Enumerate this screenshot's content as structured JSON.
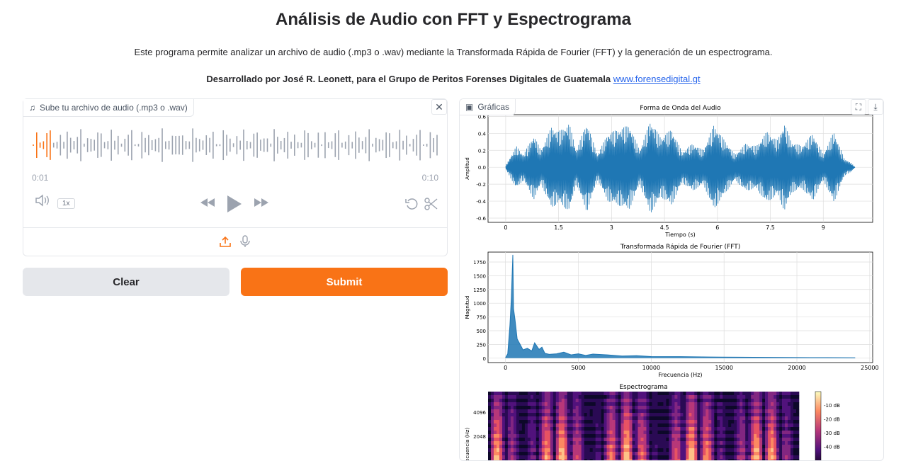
{
  "header": {
    "title": "Análisis de Audio con FFT y Espectrograma",
    "description": "Este programa permite analizar un archivo de audio (.mp3 o .wav) mediante la Transformada Rápida de Fourier (FFT) y la generación de un espectrograma.",
    "credit_text": "Desarrollado por José R. Leonett, para el Grupo de Peritos Forenses Digitales de Guatemala ",
    "credit_link": "www.forensedigital.gt"
  },
  "audio": {
    "label": "Sube tu archivo de audio (.mp3 o .wav)",
    "time_current": "0:01",
    "time_total": "0:10",
    "speed": "1x",
    "progress": 0.05
  },
  "buttons": {
    "clear": "Clear",
    "submit": "Submit"
  },
  "plots": {
    "label": "Gráficas"
  },
  "chart_data": [
    {
      "type": "line",
      "title": "Forma de Onda del Audio",
      "xlabel": "Tiempo (s)",
      "ylabel": "Amplitud",
      "xticks": [
        "0",
        "1.5",
        "3",
        "4.5",
        "6",
        "7.5",
        "9"
      ],
      "yticks": [
        "0.6",
        "0.4",
        "0.2",
        "0.0",
        "-0.2",
        "-0.4",
        "-0.6"
      ],
      "xlim": [
        -0.5,
        10.4
      ],
      "ylim": [
        -0.65,
        0.62
      ],
      "envelope": [
        [
          0.0,
          0.02
        ],
        [
          0.3,
          0.25
        ],
        [
          0.5,
          0.15
        ],
        [
          0.8,
          0.38
        ],
        [
          1.0,
          0.2
        ],
        [
          1.3,
          0.48
        ],
        [
          1.5,
          0.42
        ],
        [
          1.8,
          0.52
        ],
        [
          2.0,
          0.2
        ],
        [
          2.3,
          0.53
        ],
        [
          2.6,
          0.15
        ],
        [
          2.9,
          0.4
        ],
        [
          3.2,
          0.45
        ],
        [
          3.5,
          0.5
        ],
        [
          3.8,
          0.2
        ],
        [
          4.1,
          0.55
        ],
        [
          4.4,
          0.35
        ],
        [
          4.7,
          0.45
        ],
        [
          5.0,
          0.18
        ],
        [
          5.3,
          0.28
        ],
        [
          5.6,
          0.2
        ],
        [
          5.9,
          0.5
        ],
        [
          6.2,
          0.32
        ],
        [
          6.5,
          0.15
        ],
        [
          6.8,
          0.28
        ],
        [
          7.1,
          0.25
        ],
        [
          7.4,
          0.42
        ],
        [
          7.7,
          0.32
        ],
        [
          7.9,
          0.52
        ],
        [
          8.1,
          0.3
        ],
        [
          8.4,
          0.25
        ],
        [
          8.7,
          0.4
        ],
        [
          9.0,
          0.15
        ],
        [
          9.3,
          0.42
        ],
        [
          9.6,
          0.1
        ],
        [
          9.8,
          0.05
        ],
        [
          9.9,
          0.0
        ]
      ]
    },
    {
      "type": "line",
      "title": "Transformada Rápida de Fourier (FFT)",
      "xlabel": "Frecuencia (Hz)",
      "ylabel": "Magnitud",
      "xticks": [
        "0",
        "5000",
        "10000",
        "15000",
        "20000",
        "25000"
      ],
      "yticks": [
        "1750",
        "1500",
        "1250",
        "1000",
        "750",
        "500",
        "250",
        "0"
      ],
      "xlim": [
        -1200,
        25200
      ],
      "ylim": [
        -80,
        1930
      ],
      "x": [
        0,
        150,
        300,
        400,
        500,
        550,
        650,
        800,
        1000,
        1200,
        1500,
        1800,
        2000,
        2300,
        2500,
        2700,
        3000,
        3500,
        4000,
        4500,
        5000,
        5500,
        6000,
        7000,
        8000,
        9000,
        10000,
        12000,
        14000,
        16000,
        18000,
        20000,
        22000,
        24000
      ],
      "y": [
        10,
        80,
        600,
        1100,
        1880,
        900,
        700,
        350,
        250,
        150,
        180,
        130,
        280,
        160,
        200,
        90,
        70,
        80,
        110,
        60,
        80,
        50,
        75,
        60,
        40,
        45,
        30,
        28,
        22,
        18,
        15,
        12,
        10,
        8
      ]
    },
    {
      "type": "heatmap",
      "title": "Espectrograma",
      "ylabel": "Frecuencia (Hz)",
      "yticks": [
        "4096",
        "2048"
      ],
      "colorbar_ticks": [
        "-10 dB",
        "-20 dB",
        "-30 dB",
        "-40 dB"
      ]
    }
  ]
}
